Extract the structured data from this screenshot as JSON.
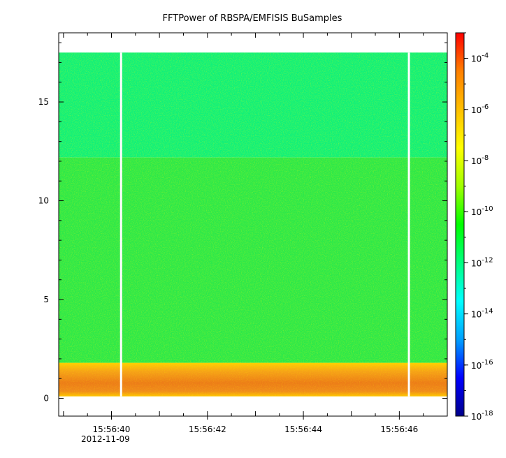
{
  "chart_data": {
    "type": "heatmap",
    "title": "FFTPower of RBSPA/EMFISIS  BuSamples",
    "xlabel": "",
    "ylabel": "",
    "x_date_label": "2012-11-09",
    "xlim": [
      "15:56:38.9",
      "15:56:47.0"
    ],
    "ylim": [
      -0.9,
      18.5
    ],
    "x_ticks": [
      "15:56:40",
      "15:56:42",
      "15:56:44",
      "15:56:46"
    ],
    "y_ticks": [
      "0",
      "5",
      "10",
      "15"
    ],
    "y_tick_values": [
      0,
      5,
      10,
      15
    ],
    "colorbar": {
      "scale": "log",
      "range": [
        1e-18,
        0.001
      ],
      "ticks": [
        {
          "base": "10",
          "exp": "-4",
          "value": 0.0001
        },
        {
          "base": "10",
          "exp": "-6",
          "value": 1e-06
        },
        {
          "base": "10",
          "exp": "-8",
          "value": 1e-08
        },
        {
          "base": "10",
          "exp": "-10",
          "value": 1e-10
        },
        {
          "base": "10",
          "exp": "-12",
          "value": 1e-12
        },
        {
          "base": "10",
          "exp": "-14",
          "value": 1e-14
        },
        {
          "base": "10",
          "exp": "-16",
          "value": 1e-16
        },
        {
          "base": "10",
          "exp": "-18",
          "value": 1e-18
        }
      ],
      "colormap": [
        "#00008b",
        "#0000ff",
        "#00a0ff",
        "#00ffff",
        "#00ff80",
        "#00ff00",
        "#a0ff00",
        "#ffff00",
        "#ffc000",
        "#ff8000",
        "#ff0000"
      ]
    },
    "bands": [
      {
        "freq_range": [
          0.1,
          1.8
        ],
        "level": 1e-07,
        "color": "#f08a1c"
      },
      {
        "freq_range": [
          1.8,
          12.2
        ],
        "level": 3e-11,
        "color": "#2ce84a"
      },
      {
        "freq_range": [
          12.2,
          17.5
        ],
        "level": 5e-12,
        "color": "#10f07a"
      }
    ],
    "data_gaps_time": [
      "15:56:40.2",
      "15:56:46.2"
    ],
    "data_time_range": [
      "15:56:38.9",
      "15:56:47.0"
    ],
    "data_freq_max": 17.5
  }
}
